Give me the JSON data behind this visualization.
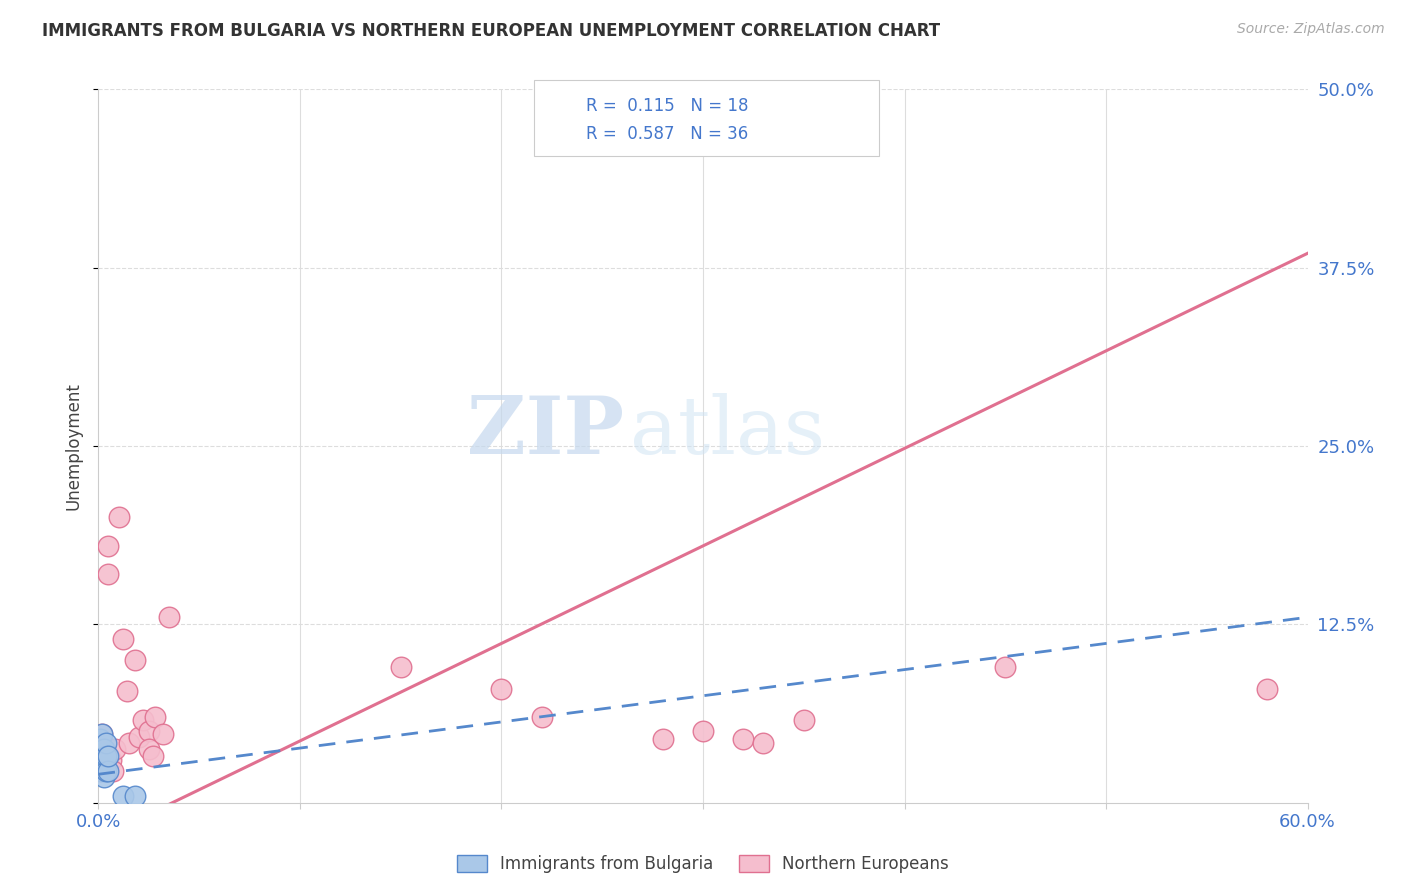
{
  "title": "IMMIGRANTS FROM BULGARIA VS NORTHERN EUROPEAN UNEMPLOYMENT CORRELATION CHART",
  "source": "Source: ZipAtlas.com",
  "ylabel": "Unemployment",
  "xlim": [
    0.0,
    0.6
  ],
  "ylim": [
    0.0,
    0.5
  ],
  "blue_R": "0.115",
  "blue_N": "18",
  "pink_R": "0.587",
  "pink_N": "36",
  "legend_label_blue": "Immigrants from Bulgaria",
  "legend_label_pink": "Northern Europeans",
  "blue_color": "#aac8e8",
  "blue_edge_color": "#5588cc",
  "pink_color": "#f5bece",
  "pink_edge_color": "#e07090",
  "blue_line_color": "#5588cc",
  "pink_line_color": "#e07090",
  "blue_trendline": [
    [
      0.0,
      0.6
    ],
    [
      0.02,
      0.13
    ]
  ],
  "pink_trendline": [
    [
      0.0,
      0.6
    ],
    [
      -0.025,
      0.385
    ]
  ],
  "blue_scatter_x": [
    0.0005,
    0.001,
    0.001,
    0.0015,
    0.002,
    0.002,
    0.002,
    0.0025,
    0.003,
    0.003,
    0.003,
    0.004,
    0.004,
    0.004,
    0.005,
    0.005,
    0.012,
    0.018
  ],
  "blue_scatter_y": [
    0.032,
    0.028,
    0.045,
    0.022,
    0.025,
    0.038,
    0.048,
    0.032,
    0.018,
    0.03,
    0.038,
    0.022,
    0.033,
    0.042,
    0.022,
    0.033,
    0.005,
    0.005
  ],
  "pink_scatter_x": [
    0.0005,
    0.001,
    0.001,
    0.0015,
    0.002,
    0.002,
    0.003,
    0.004,
    0.005,
    0.005,
    0.006,
    0.007,
    0.008,
    0.01,
    0.012,
    0.014,
    0.015,
    0.018,
    0.02,
    0.022,
    0.025,
    0.025,
    0.027,
    0.028,
    0.032,
    0.035,
    0.15,
    0.2,
    0.22,
    0.28,
    0.3,
    0.32,
    0.33,
    0.35,
    0.45,
    0.58
  ],
  "pink_scatter_y": [
    0.028,
    0.022,
    0.042,
    0.032,
    0.028,
    0.048,
    0.028,
    0.035,
    0.18,
    0.16,
    0.03,
    0.022,
    0.038,
    0.2,
    0.115,
    0.078,
    0.042,
    0.1,
    0.046,
    0.058,
    0.05,
    0.038,
    0.033,
    0.06,
    0.048,
    0.13,
    0.095,
    0.08,
    0.06,
    0.045,
    0.05,
    0.045,
    0.042,
    0.058,
    0.095,
    0.08
  ],
  "watermark_zip": "ZIP",
  "watermark_atlas": "atlas",
  "grid_color": "#dddddd",
  "spine_color": "#cccccc"
}
